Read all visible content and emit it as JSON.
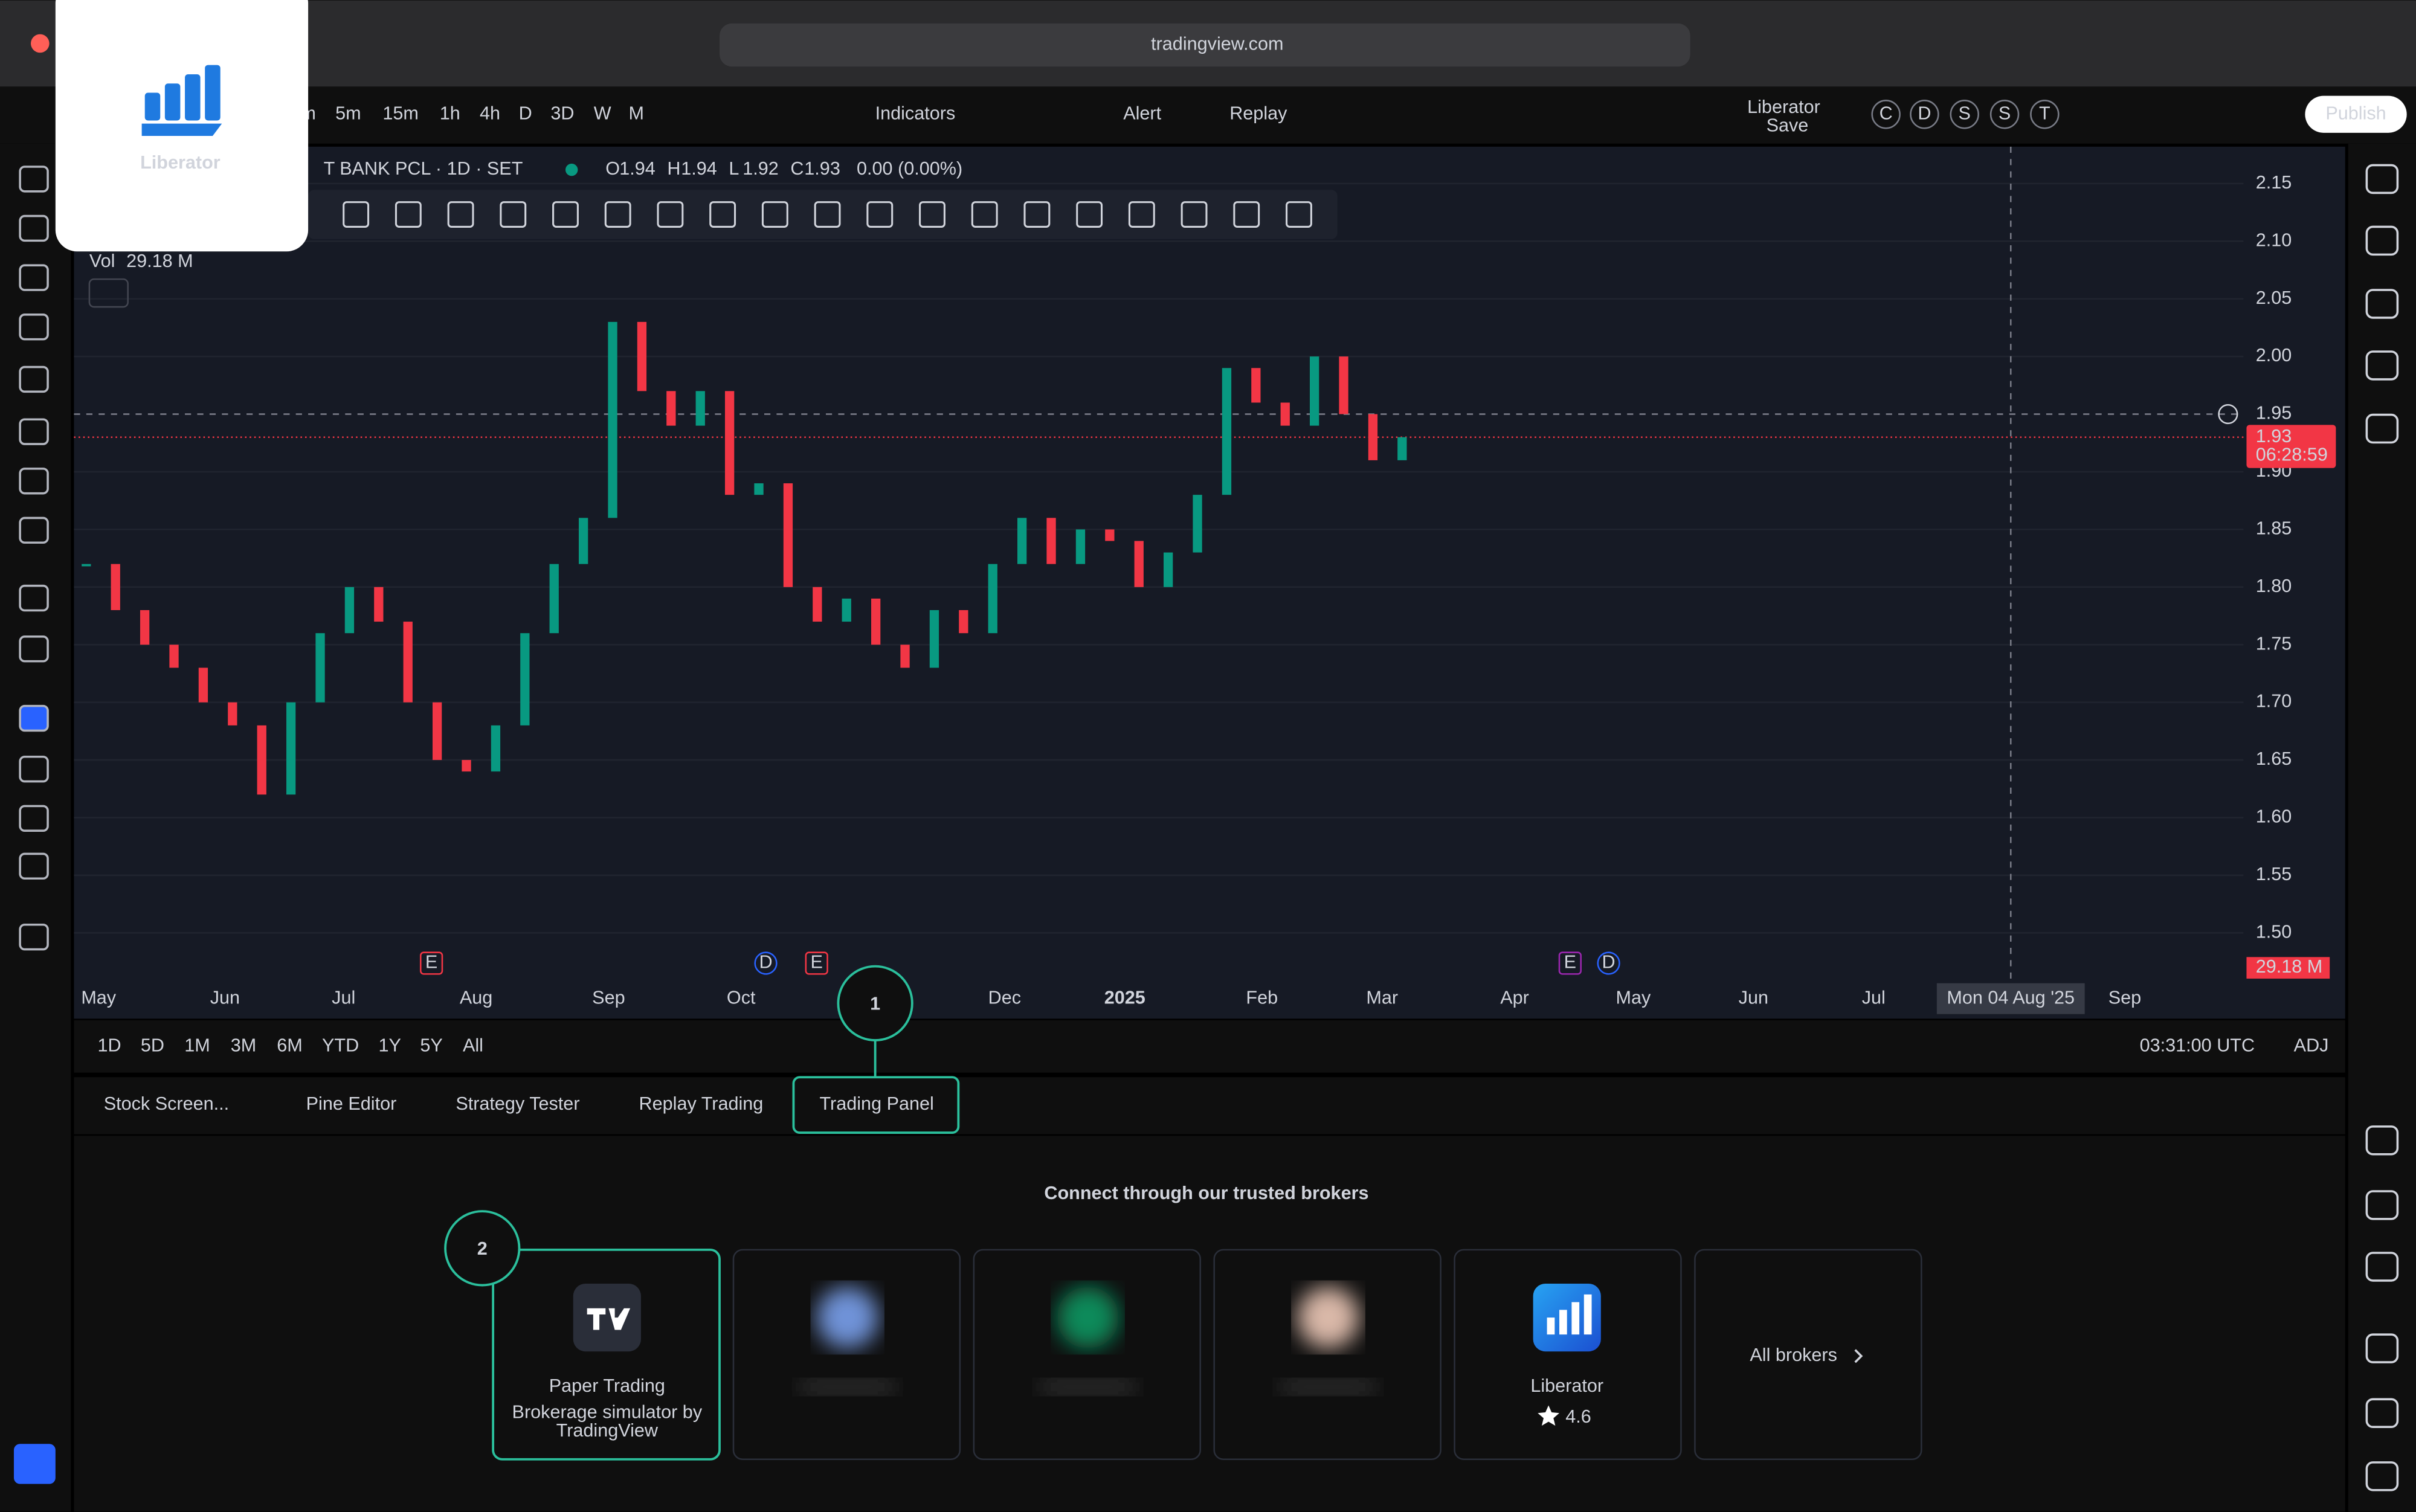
{
  "browser": {
    "url": "tradingview.com"
  },
  "logo": "Liberator",
  "toolbar": {
    "intervals": [
      "m",
      "5m",
      "15m",
      "1h",
      "4h",
      "D",
      "3D",
      "W",
      "M"
    ],
    "indicators": "Indicators",
    "alert": "Alert",
    "replay": "Replay",
    "layout": "Liberator",
    "layout_status": "Save",
    "badges": [
      "C",
      "D",
      "S",
      "S",
      "T"
    ],
    "publish": "Publish"
  },
  "legend": {
    "symbol": "T BANK PCL · 1D · SET",
    "ohlc": [
      {
        "key": "O",
        "value": "1.94"
      },
      {
        "key": "H",
        "value": "1.94"
      },
      {
        "key": "L",
        "value": "1.92"
      },
      {
        "key": "C",
        "value": "1.93"
      }
    ],
    "change": "0.00 (0.00%)",
    "volume_label": "Vol",
    "volume": "29.18 M"
  },
  "chart_data": {
    "type": "candlestick",
    "closes": [
      1.82,
      1.78,
      1.75,
      1.73,
      1.7,
      1.68,
      1.62,
      1.7,
      1.76,
      1.8,
      1.77,
      1.7,
      1.65,
      1.64,
      1.68,
      1.76,
      1.82,
      1.86,
      2.03,
      1.97,
      1.94,
      1.97,
      1.88,
      1.89,
      1.8,
      1.77,
      1.79,
      1.75,
      1.73,
      1.78,
      1.76,
      1.82,
      1.86,
      1.82,
      1.85,
      1.84,
      1.8,
      1.83,
      1.88,
      1.99,
      1.96,
      1.94,
      2.0,
      1.95,
      1.91,
      1.93
    ],
    "ylim": [
      1.459,
      2.182
    ],
    "yticks": [
      {
        "value": 2.15,
        "label": "2.15"
      },
      {
        "value": 2.1,
        "label": "2.10"
      },
      {
        "value": 2.05,
        "label": "2.05"
      },
      {
        "value": 2.0,
        "label": "2.00"
      },
      {
        "value": 1.9,
        "label": "1.90"
      },
      {
        "value": 1.85,
        "label": "1.85"
      },
      {
        "value": 1.8,
        "label": "1.80"
      },
      {
        "value": 1.75,
        "label": "1.75"
      },
      {
        "value": 1.7,
        "label": "1.70"
      },
      {
        "value": 1.65,
        "label": "1.65"
      },
      {
        "value": 1.6,
        "label": "1.60"
      },
      {
        "value": 1.55,
        "label": "1.55"
      },
      {
        "value": 1.5,
        "label": "1.50"
      }
    ],
    "crosshair": {
      "value": 1.95,
      "label": "1.95"
    },
    "last": {
      "value": 1.93,
      "label": "1.93"
    },
    "countdown": "06:28:59",
    "volume_badge": "29.18 M"
  },
  "events": [
    "E",
    "D",
    "E",
    "E",
    "D"
  ],
  "time_axis": [
    "May",
    "Jun",
    "Jul",
    "Aug",
    "Sep",
    "Oct",
    "Dec",
    "2025",
    "Feb",
    "Mar",
    "Apr",
    "May",
    "Jun",
    "Jul",
    "Sep"
  ],
  "crosshair_date": "Mon 04 Aug '25",
  "ranges": [
    "1D",
    "5D",
    "1M",
    "3M",
    "6M",
    "YTD",
    "1Y",
    "5Y",
    "All"
  ],
  "clock": "03:31:00 UTC",
  "adj": "ADJ",
  "tabs": [
    "Stock Screen...",
    "Pine Editor",
    "Strategy Tester",
    "Replay Trading",
    "Trading Panel"
  ],
  "panel": {
    "heading": "Connect through our trusted brokers",
    "paper": {
      "name": "Paper Trading",
      "subtitle": [
        "Brokerage simulator by",
        "TradingView"
      ]
    },
    "liberator": {
      "name": "Liberator",
      "rating": "4.6"
    },
    "all": "All brokers"
  },
  "callouts": [
    "1",
    "2"
  ]
}
